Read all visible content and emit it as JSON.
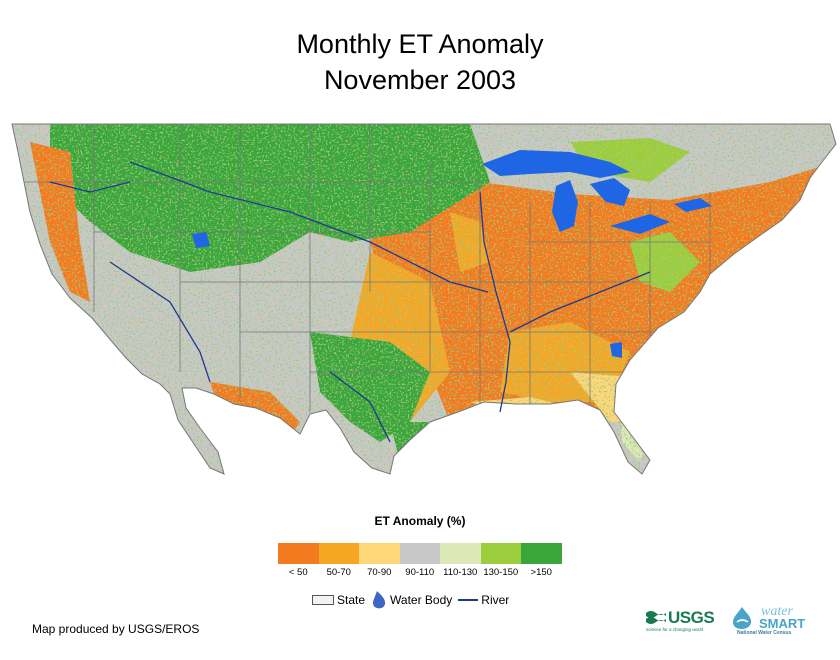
{
  "title": {
    "line1": "Monthly ET Anomaly",
    "line2": "November 2003"
  },
  "legend": {
    "title": "ET Anomaly (%)",
    "classes": [
      {
        "label": "< 50",
        "color": "#f47a20"
      },
      {
        "label": "50-70",
        "color": "#f7a624"
      },
      {
        "label": "70-90",
        "color": "#fdd77a"
      },
      {
        "label": "90-110",
        "color": "#c8c8c8"
      },
      {
        "label": "110-130",
        "color": "#dce8b8"
      },
      {
        "label": "130-150",
        "color": "#9ccd3c"
      },
      {
        "label": ">150",
        "color": "#3aa63c"
      }
    ],
    "reference": {
      "state_label": "State",
      "water_label": "Water Body",
      "river_label": "River"
    }
  },
  "colors": {
    "water": "#1f66e5",
    "river": "#1f3a93",
    "state_border": "#777777"
  },
  "credit": "Map produced by USGS/EROS",
  "logos": {
    "usgs": "USGS",
    "usgs_tagline": "science for a changing world",
    "watersmart_top": "water",
    "watersmart_bottom": "SMART",
    "watersmart_sub": "National Water Census"
  }
}
